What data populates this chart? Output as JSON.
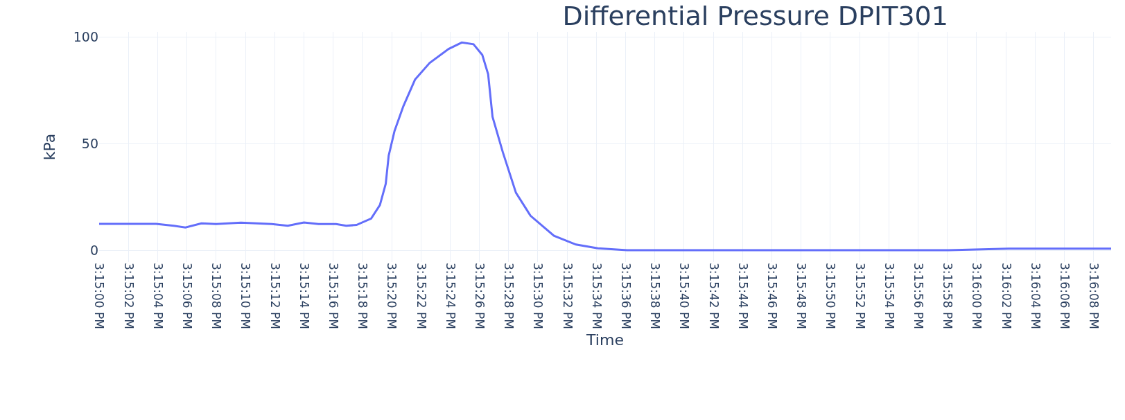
{
  "chart_data": {
    "type": "line",
    "title": "Differential Pressure DPIT301",
    "xlabel": "Time",
    "ylabel": "kPa",
    "x": [
      15.25,
      15.251083,
      15.251417,
      15.251639,
      15.251944,
      15.252222,
      15.252694,
      15.253278,
      15.253583,
      15.253889,
      15.254167,
      15.2545,
      15.254694,
      15.254889,
      15.255167,
      15.255333,
      15.255444,
      15.2555,
      15.255611,
      15.255778,
      15.256,
      15.256278,
      15.256639,
      15.256889,
      15.257111,
      15.257278,
      15.257389,
      15.257472,
      15.257667,
      15.257917,
      15.258194,
      15.258639,
      15.259056,
      15.259472,
      15.260028,
      15.266139,
      15.267278,
      15.269222
    ],
    "values": [
      12.4,
      12.4,
      11.5,
      10.7,
      12.6,
      12.3,
      13.0,
      12.3,
      11.5,
      13.0,
      12.3,
      12.3,
      11.5,
      11.9,
      14.9,
      21.2,
      31.2,
      44.4,
      56.0,
      67.6,
      80.1,
      87.9,
      94.5,
      97.5,
      96.7,
      91.7,
      82.6,
      62.7,
      46.1,
      27.0,
      16.2,
      6.8,
      2.7,
      0.9,
      0,
      0,
      0.8,
      0.8
    ],
    "color": "#636efa",
    "marker": "none",
    "line_style": "solid",
    "grid": true,
    "xlim": [
      15.25,
      15.269222
    ],
    "ylim": [
      -5.5,
      102.5
    ],
    "yticks": [
      0,
      50,
      100
    ],
    "xticks": [
      {
        "value": 15.25,
        "label": "3:15:00 PM"
      },
      {
        "value": 15.250556,
        "label": "3:15:02 PM"
      },
      {
        "value": 15.251111,
        "label": "3:15:04 PM"
      },
      {
        "value": 15.251667,
        "label": "3:15:06 PM"
      },
      {
        "value": 15.252222,
        "label": "3:15:08 PM"
      },
      {
        "value": 15.252778,
        "label": "3:15:10 PM"
      },
      {
        "value": 15.253333,
        "label": "3:15:12 PM"
      },
      {
        "value": 15.253889,
        "label": "3:15:14 PM"
      },
      {
        "value": 15.254444,
        "label": "3:15:16 PM"
      },
      {
        "value": 15.255,
        "label": "3:15:18 PM"
      },
      {
        "value": 15.255556,
        "label": "3:15:20 PM"
      },
      {
        "value": 15.256111,
        "label": "3:15:22 PM"
      },
      {
        "value": 15.256667,
        "label": "3:15:24 PM"
      },
      {
        "value": 15.257222,
        "label": "3:15:26 PM"
      },
      {
        "value": 15.257778,
        "label": "3:15:28 PM"
      },
      {
        "value": 15.258333,
        "label": "3:15:30 PM"
      },
      {
        "value": 15.258889,
        "label": "3:15:32 PM"
      },
      {
        "value": 15.259444,
        "label": "3:15:34 PM"
      },
      {
        "value": 15.26,
        "label": "3:15:36 PM"
      },
      {
        "value": 15.260556,
        "label": "3:15:38 PM"
      },
      {
        "value": 15.261111,
        "label": "3:15:40 PM"
      },
      {
        "value": 15.261667,
        "label": "3:15:42 PM"
      },
      {
        "value": 15.262222,
        "label": "3:15:44 PM"
      },
      {
        "value": 15.262778,
        "label": "3:15:46 PM"
      },
      {
        "value": 15.263333,
        "label": "3:15:48 PM"
      },
      {
        "value": 15.263889,
        "label": "3:15:50 PM"
      },
      {
        "value": 15.264444,
        "label": "3:15:52 PM"
      },
      {
        "value": 15.265,
        "label": "3:15:54 PM"
      },
      {
        "value": 15.265556,
        "label": "3:15:56 PM"
      },
      {
        "value": 15.266111,
        "label": "3:15:58 PM"
      },
      {
        "value": 15.266667,
        "label": "3:16:00 PM"
      },
      {
        "value": 15.267222,
        "label": "3:16:02 PM"
      },
      {
        "value": 15.267778,
        "label": "3:16:04 PM"
      },
      {
        "value": 15.268333,
        "label": "3:16:06 PM"
      },
      {
        "value": 15.268889,
        "label": "3:16:08 PM"
      }
    ]
  }
}
